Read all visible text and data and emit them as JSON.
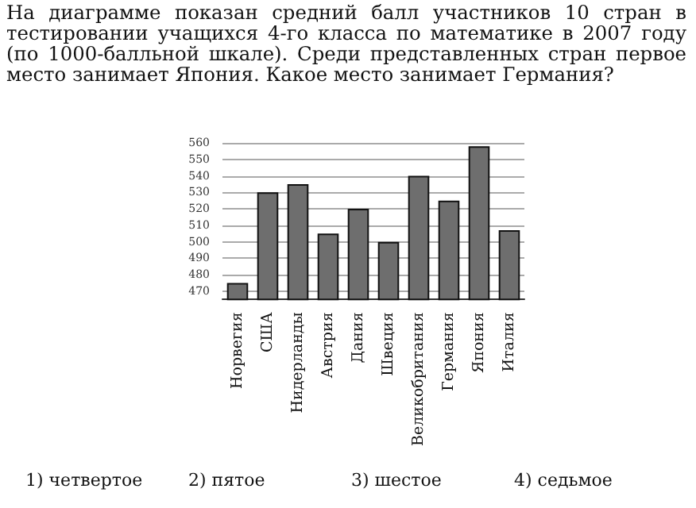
{
  "chart_data": {
    "type": "bar",
    "title": "На диаграмме показан средний балл участников 10 стран в тестировании учащихся 4-го класса по математике в 2007 году (по 1000-балльной шкале). Среди представленных стран первое место занимает Япония. Какое место занимает Германия?",
    "categories": [
      "Норвегия",
      "США",
      "Нидерланды",
      "Австрия",
      "Дания",
      "Швеция",
      "Великобритания",
      "Германия",
      "Япония",
      "Италия"
    ],
    "values": [
      475,
      530,
      535,
      505,
      520,
      500,
      540,
      525,
      558,
      507
    ],
    "color": "#6e6e6e",
    "ylim": [
      465,
      560
    ],
    "yticks": [
      470,
      480,
      490,
      500,
      510,
      520,
      530,
      540,
      550,
      560
    ],
    "grid": "y",
    "annotations": [
      "1) четвертое",
      "2) пятое",
      "3) шестое",
      "4) седьмое"
    ]
  }
}
